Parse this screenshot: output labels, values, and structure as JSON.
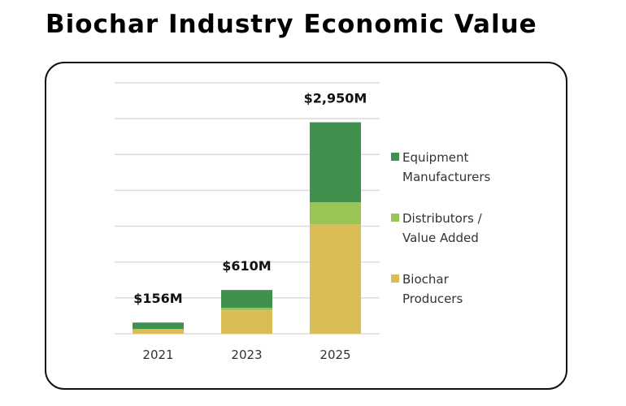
{
  "title": "Biochar Industry Economic Value",
  "chart_data": {
    "type": "bar",
    "stacked": true,
    "title": "Biochar Industry Economic Value",
    "xlabel": "",
    "ylabel": "",
    "categories": [
      "2021",
      "2023",
      "2025"
    ],
    "series": [
      {
        "name": "Biochar Producers",
        "color": "#DBBD56",
        "values": [
          59,
          325,
          1525
        ]
      },
      {
        "name": "Distributors / Value Added",
        "color": "#9AC555",
        "values": [
          6,
          35,
          310
        ]
      },
      {
        "name": "Equipment Manufacturers",
        "color": "#40914D",
        "values": [
          91,
          250,
          1115
        ]
      }
    ],
    "totals": [
      156,
      610,
      2950
    ],
    "total_labels": [
      "$156M",
      "$610M",
      "$2,950M"
    ],
    "ylim": [
      0,
      3500
    ],
    "ytick_step": 500,
    "grid": true,
    "y_axis_labels_visible": false,
    "legend": {
      "placement": "right",
      "entries": [
        {
          "lines": [
            "Equipment",
            "Manufacturers"
          ],
          "color": "#40914D"
        },
        {
          "lines": [
            "Distributors /",
            "Value Added"
          ],
          "color": "#9AC555"
        },
        {
          "lines": [
            "Biochar",
            "Producers"
          ],
          "color": "#DBBD56"
        }
      ]
    }
  }
}
